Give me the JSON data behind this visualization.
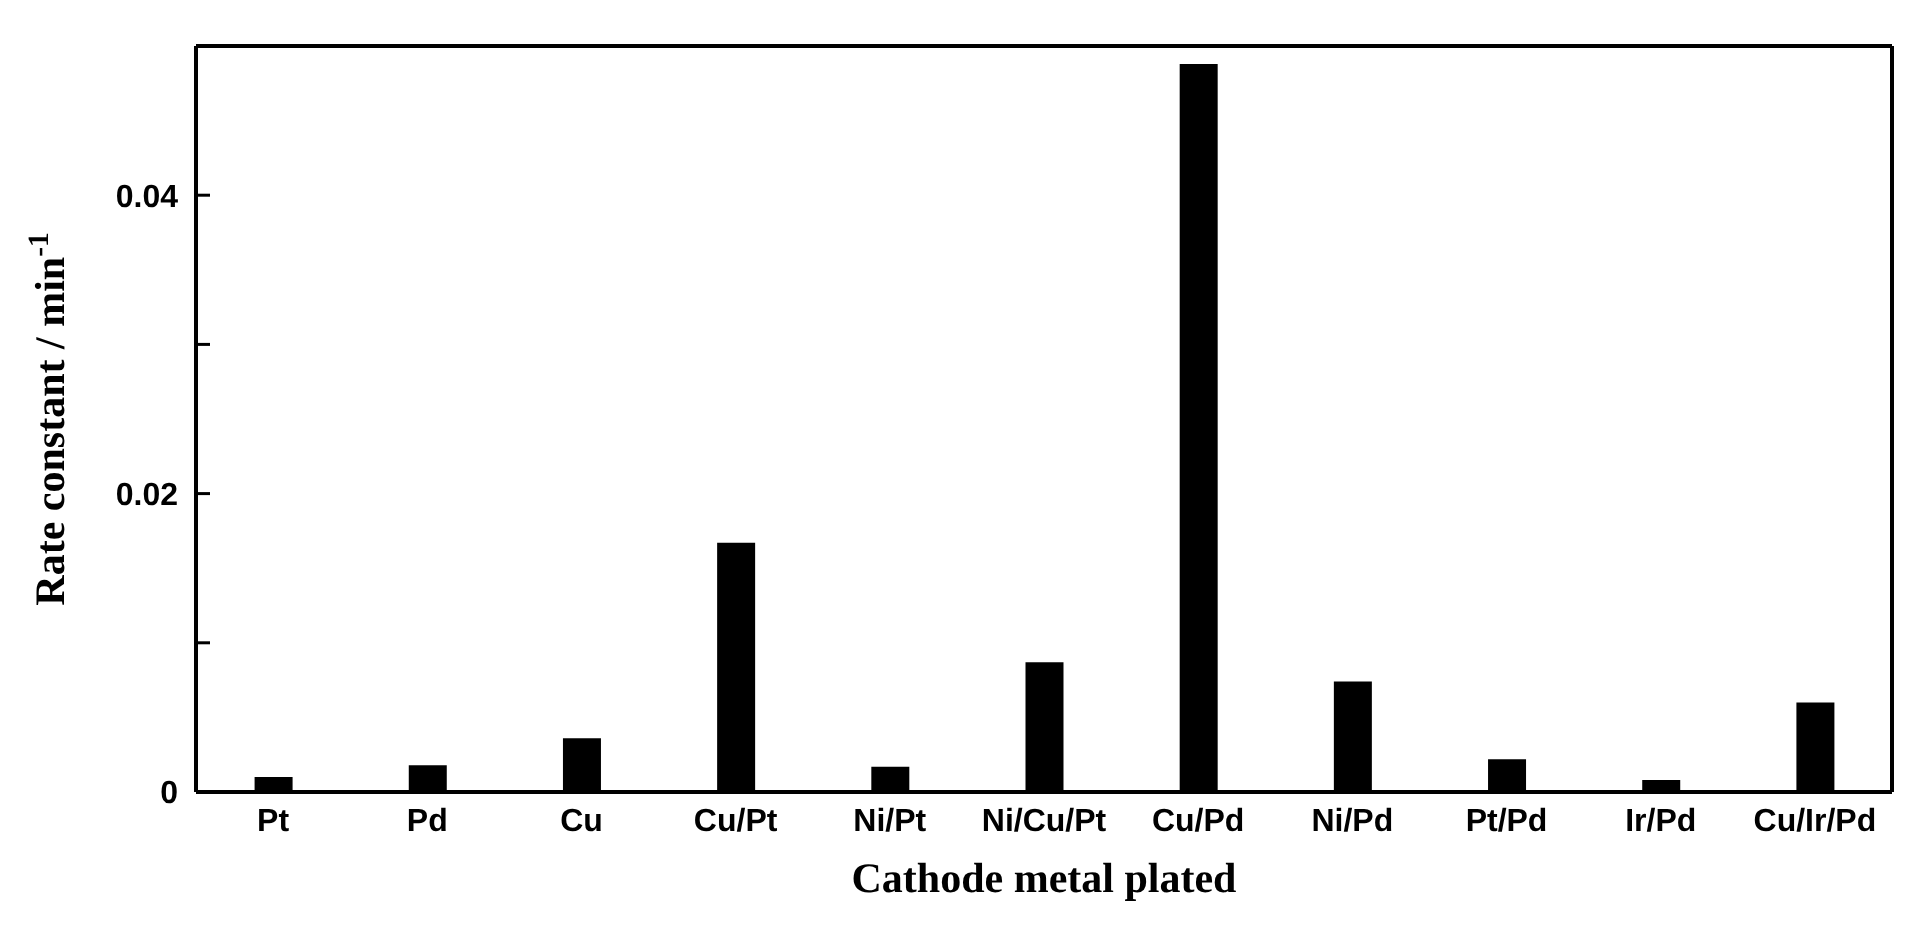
{
  "chart_data": {
    "type": "bar",
    "xlabel": "Cathode metal plated",
    "ylabel": "Rate constant / min$^{-1}$",
    "categories": [
      "Pt",
      "Pd",
      "Cu",
      "Cu/Pt",
      "Ni/Pt",
      "Ni/Cu/Pt",
      "Cu/Pd",
      "Ni/Pd",
      "Pt/Pd",
      "Ir/Pd",
      "Cu/Ir/Pd"
    ],
    "values": [
      0.001,
      0.0018,
      0.0036,
      0.0167,
      0.0017,
      0.0087,
      0.0488,
      0.0074,
      0.0022,
      0.0008,
      0.006
    ],
    "color": "#000000",
    "ylim": [
      0,
      0.05
    ],
    "yticks": [
      0,
      {
        "value": 0.01,
        "label": null
      },
      0.02,
      {
        "value": 0.03,
        "label": null
      },
      0.04
    ],
    "grid": false
  }
}
